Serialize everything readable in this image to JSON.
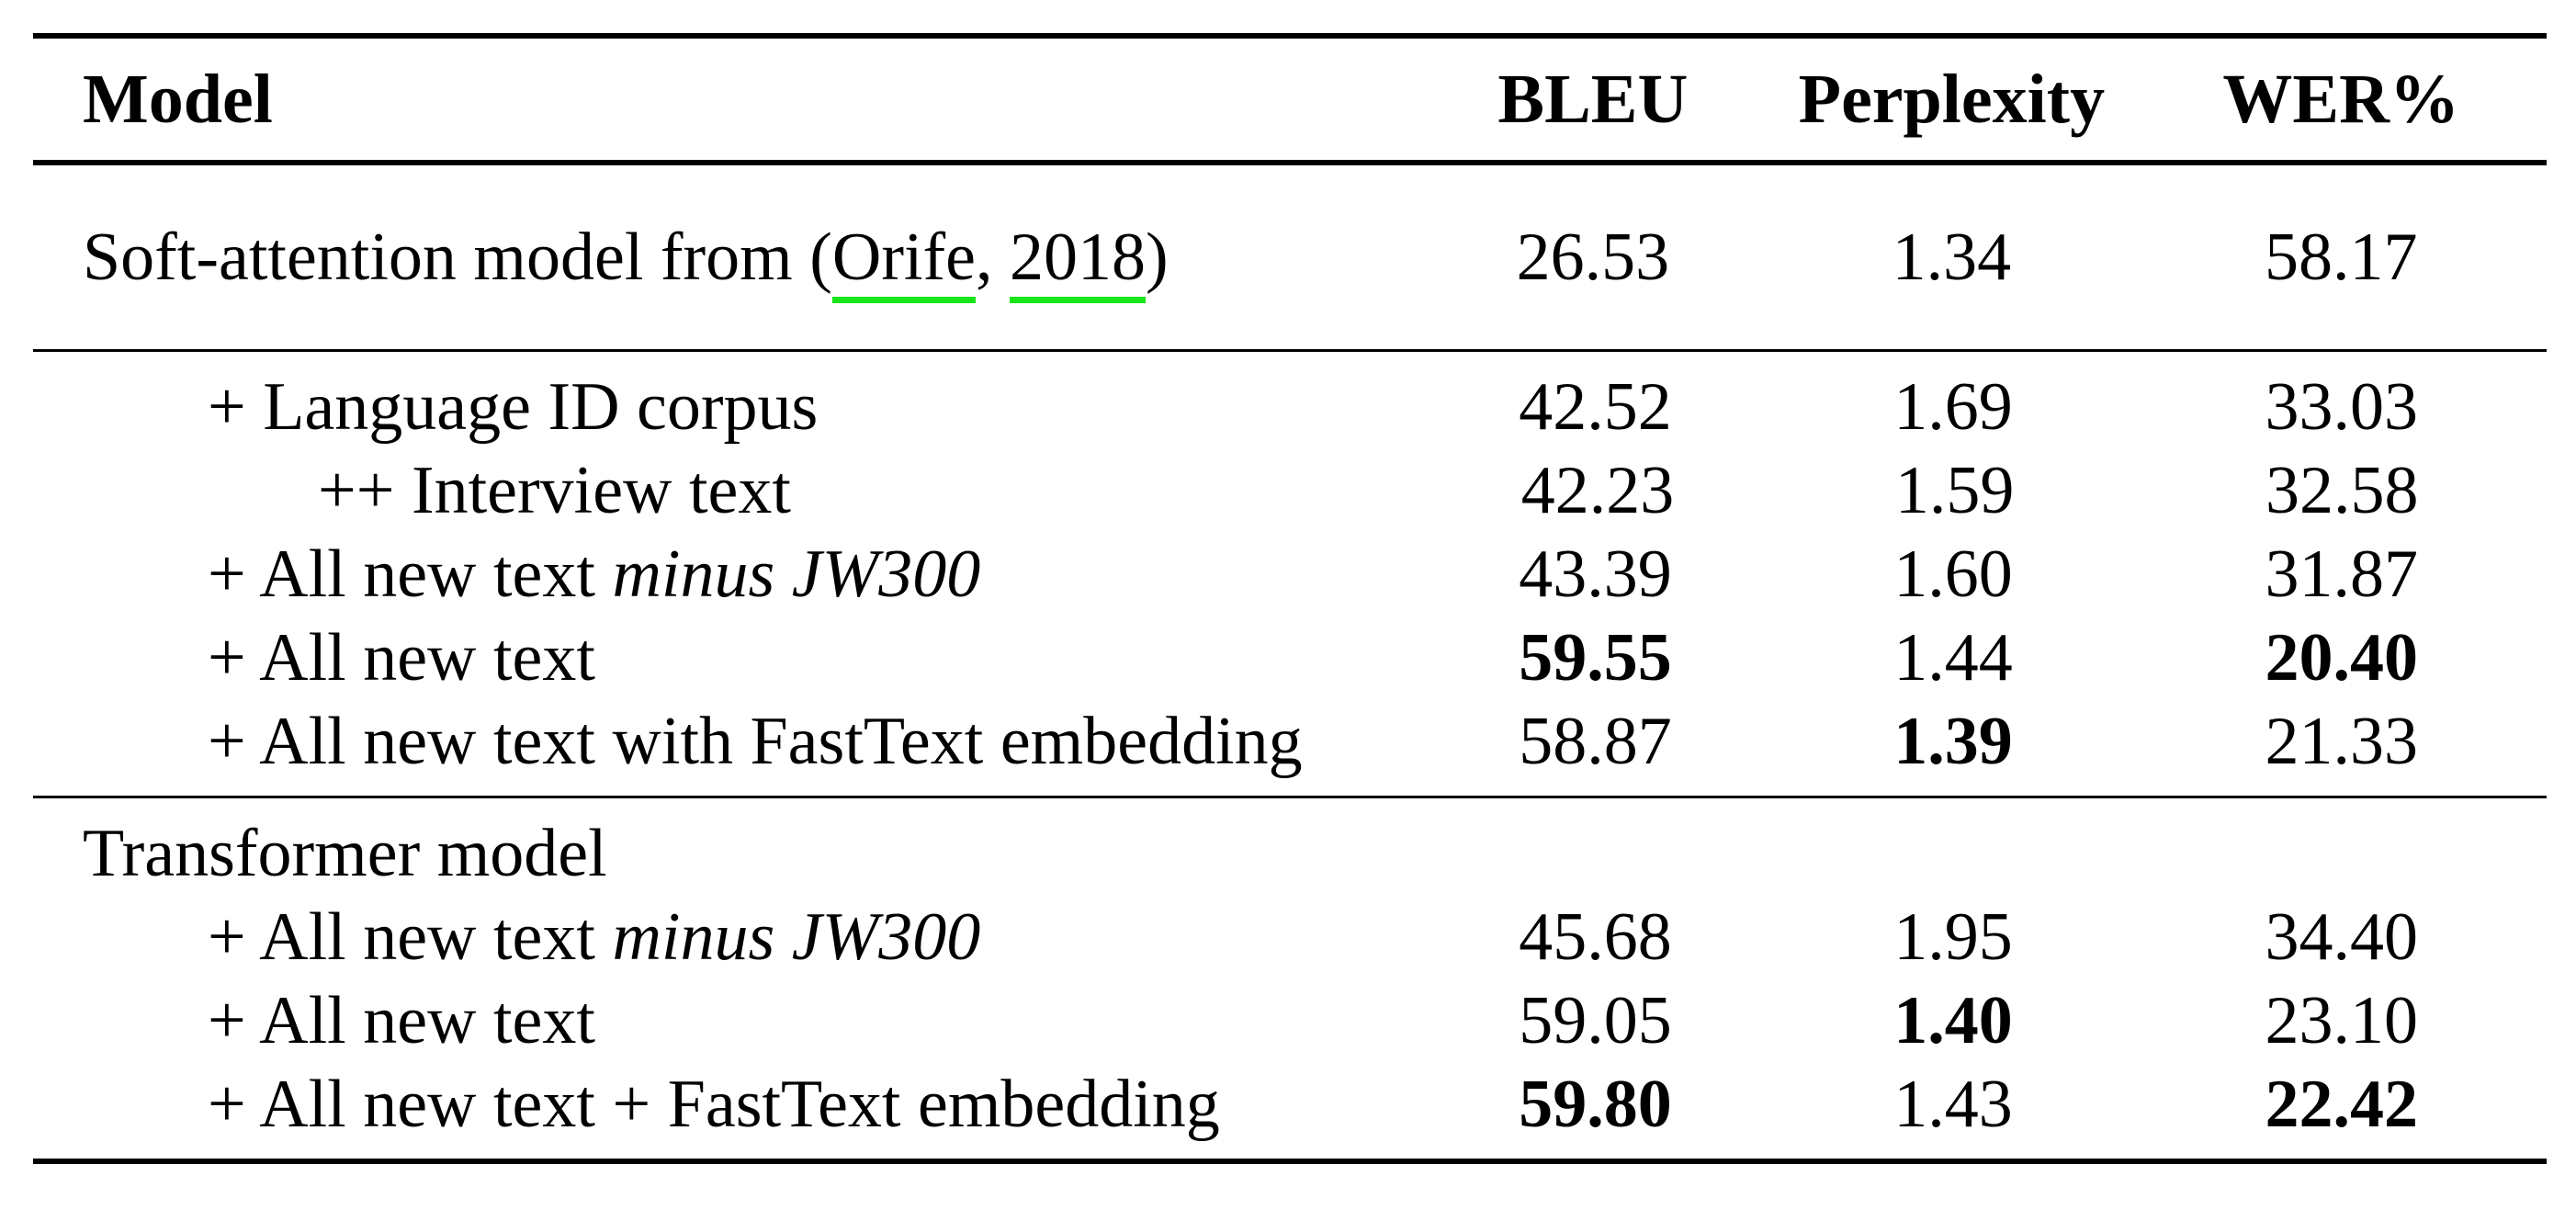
{
  "table": {
    "headers": {
      "model": "Model",
      "bleu": "BLEU",
      "perplexity": "Perplexity",
      "wer": "WER%"
    },
    "soft_attention": {
      "label_prefix": "Soft-attention model from (",
      "cite_author": "Orife",
      "cite_sep": ", ",
      "cite_year": "2018",
      "label_suffix": ")",
      "bleu": "26.53",
      "perplexity": "1.34",
      "wer": "58.17"
    },
    "rnn_rows": [
      {
        "label": "+ Language ID corpus",
        "bleu": "42.52",
        "perplexity": "1.69",
        "wer": "33.03"
      },
      {
        "label": "++ Interview text",
        "bleu": "42.23",
        "perplexity": "1.59",
        "wer": "32.58"
      },
      {
        "label": "+ All new text ",
        "label_italic": "minus JW300",
        "bleu": "43.39",
        "perplexity": "1.60",
        "wer": "31.87"
      },
      {
        "label": "+ All new text",
        "bleu": "59.55",
        "perplexity": "1.44",
        "wer": "20.40"
      },
      {
        "label": "+ All new text with FastText embedding",
        "bleu": "58.87",
        "perplexity": "1.39",
        "wer": "21.33"
      }
    ],
    "transformer": {
      "title": "Transformer model",
      "rows": [
        {
          "label": "+ All new text ",
          "label_italic": "minus JW300",
          "bleu": "45.68",
          "perplexity": "1.95",
          "wer": "34.40"
        },
        {
          "label": "+ All new text",
          "bleu": "59.05",
          "perplexity": "1.40",
          "wer": "23.10"
        },
        {
          "label": "+ All new text + FastText embedding",
          "bleu": "59.80",
          "perplexity": "1.43",
          "wer": "22.42"
        }
      ]
    }
  }
}
